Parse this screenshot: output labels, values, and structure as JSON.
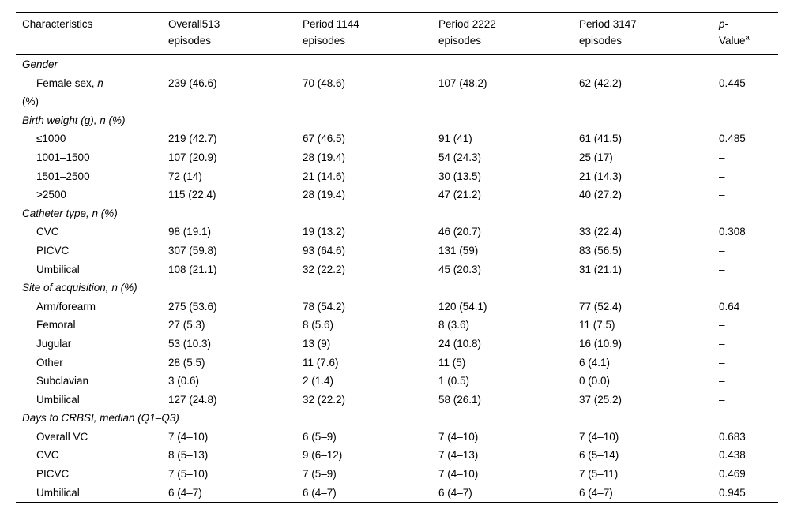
{
  "page": {
    "background": "#ffffff",
    "text_color": "#000000",
    "rule_color": "#000000"
  },
  "table": {
    "columns": [
      {
        "id": "characteristics",
        "lines": [
          [
            {
              "text": "Characteristics"
            }
          ]
        ]
      },
      {
        "id": "overall",
        "lines": [
          [
            {
              "text": "Overall513"
            }
          ],
          [
            {
              "text": "episodes"
            }
          ]
        ]
      },
      {
        "id": "period-1",
        "lines": [
          [
            {
              "text": "Period 1144"
            }
          ],
          [
            {
              "text": "episodes"
            }
          ]
        ]
      },
      {
        "id": "period-2",
        "lines": [
          [
            {
              "text": "Period 2222"
            }
          ],
          [
            {
              "text": "episodes"
            }
          ]
        ]
      },
      {
        "id": "period-3",
        "lines": [
          [
            {
              "text": "Period 3147"
            }
          ],
          [
            {
              "text": "episodes"
            }
          ]
        ]
      },
      {
        "id": "p-value",
        "lines": [
          [
            {
              "text": "p",
              "italic": true
            },
            {
              "text": "-"
            }
          ],
          [
            {
              "text": "Value"
            },
            {
              "text": "a",
              "sup": true
            }
          ]
        ]
      }
    ],
    "sections": [
      {
        "id": "gender",
        "title": [
          {
            "text": "Gender",
            "italic": true
          }
        ],
        "rows": [
          {
            "id": "female-sex",
            "label_lines": [
              [
                {
                  "text": "Female sex, "
                },
                {
                  "text": "n",
                  "italic": true
                }
              ],
              [
                {
                  "text": "(%)"
                }
              ]
            ],
            "values": [
              "239 (46.6)",
              "70 (48.6)",
              "107 (48.2)",
              "62 (42.2)",
              "0.445"
            ]
          }
        ]
      },
      {
        "id": "birth-weight",
        "title": [
          {
            "text": "Birth weight (g), n (%)",
            "italic": true
          }
        ],
        "rows": [
          {
            "id": "le-1000",
            "label_lines": [
              [
                {
                  "text": "≤1000"
                }
              ]
            ],
            "values": [
              "219 (42.7)",
              "67 (46.5)",
              "91 (41)",
              "61 (41.5)",
              "0.485"
            ]
          },
          {
            "id": "1001-1500",
            "label_lines": [
              [
                {
                  "text": "1001–1500"
                }
              ]
            ],
            "values": [
              "107 (20.9)",
              "28 (19.4)",
              "54 (24.3)",
              "25 (17)",
              "–"
            ]
          },
          {
            "id": "1501-2500",
            "label_lines": [
              [
                {
                  "text": "1501–2500"
                }
              ]
            ],
            "values": [
              "72 (14)",
              "21 (14.6)",
              "30 (13.5)",
              "21 (14.3)",
              "–"
            ]
          },
          {
            "id": "gt-2500",
            "label_lines": [
              [
                {
                  "text": ">2500"
                }
              ]
            ],
            "values": [
              "115 (22.4)",
              "28 (19.4)",
              "47 (21.2)",
              "40 (27.2)",
              "–"
            ]
          }
        ]
      },
      {
        "id": "catheter-type",
        "title": [
          {
            "text": "Catheter type, n (%)",
            "italic": true
          }
        ],
        "rows": [
          {
            "id": "cvc",
            "label_lines": [
              [
                {
                  "text": "CVC"
                }
              ]
            ],
            "values": [
              "98 (19.1)",
              "19 (13.2)",
              "46 (20.7)",
              "33 (22.4)",
              "0.308"
            ]
          },
          {
            "id": "picvc",
            "label_lines": [
              [
                {
                  "text": "PICVC"
                }
              ]
            ],
            "values": [
              "307 (59.8)",
              "93 (64.6)",
              "131 (59)",
              "83 (56.5)",
              "–"
            ]
          },
          {
            "id": "umbilical",
            "label_lines": [
              [
                {
                  "text": "Umbilical"
                }
              ]
            ],
            "values": [
              "108 (21.1)",
              "32 (22.2)",
              "45 (20.3)",
              "31 (21.1)",
              "–"
            ]
          }
        ]
      },
      {
        "id": "site-of-acquisition",
        "title": [
          {
            "text": "Site of acquisition, n (%)",
            "italic": true
          }
        ],
        "rows": [
          {
            "id": "arm-forearm",
            "label_lines": [
              [
                {
                  "text": "Arm/forearm"
                }
              ]
            ],
            "values": [
              "275 (53.6)",
              "78 (54.2)",
              "120 (54.1)",
              "77 (52.4)",
              "0.64"
            ]
          },
          {
            "id": "femoral",
            "label_lines": [
              [
                {
                  "text": "Femoral"
                }
              ]
            ],
            "values": [
              "27 (5.3)",
              "8 (5.6)",
              "8 (3.6)",
              "11 (7.5)",
              "–"
            ]
          },
          {
            "id": "jugular",
            "label_lines": [
              [
                {
                  "text": "Jugular"
                }
              ]
            ],
            "values": [
              "53 (10.3)",
              "13 (9)",
              "24 (10.8)",
              "16 (10.9)",
              "–"
            ]
          },
          {
            "id": "other",
            "label_lines": [
              [
                {
                  "text": "Other"
                }
              ]
            ],
            "values": [
              "28 (5.5)",
              "11 (7.6)",
              "11 (5)",
              "6 (4.1)",
              "–"
            ]
          },
          {
            "id": "subclavian",
            "label_lines": [
              [
                {
                  "text": "Subclavian"
                }
              ]
            ],
            "values": [
              "3 (0.6)",
              "2 (1.4)",
              "1 (0.5)",
              "0 (0.0)",
              "–"
            ]
          },
          {
            "id": "umbilical-site",
            "label_lines": [
              [
                {
                  "text": "Umbilical"
                }
              ]
            ],
            "values": [
              "127 (24.8)",
              "32 (22.2)",
              "58 (26.1)",
              "37 (25.2)",
              "–"
            ]
          }
        ]
      },
      {
        "id": "days-to-crbsi",
        "title": [
          {
            "text": "Days to CRBSI, median (Q1–Q3)",
            "italic": true
          }
        ],
        "rows": [
          {
            "id": "overall-vc",
            "label_lines": [
              [
                {
                  "text": "Overall VC"
                }
              ]
            ],
            "values": [
              "7 (4–10)",
              "6 (5–9)",
              "7 (4–10)",
              "7 (4–10)",
              "0.683"
            ]
          },
          {
            "id": "cvc-days",
            "label_lines": [
              [
                {
                  "text": "CVC"
                }
              ]
            ],
            "values": [
              "8 (5–13)",
              "9 (6–12)",
              "7 (4–13)",
              "6 (5–14)",
              "0.438"
            ]
          },
          {
            "id": "picvc-days",
            "label_lines": [
              [
                {
                  "text": "PICVC"
                }
              ]
            ],
            "values": [
              "7 (5–10)",
              "7 (5–9)",
              "7 (4–10)",
              "7 (5–11)",
              "0.469"
            ]
          },
          {
            "id": "umbilical-days",
            "label_lines": [
              [
                {
                  "text": "Umbilical"
                }
              ]
            ],
            "values": [
              "6 (4–7)",
              "6 (4–7)",
              "6 (4–7)",
              "6 (4–7)",
              "0.945"
            ]
          }
        ]
      }
    ]
  }
}
